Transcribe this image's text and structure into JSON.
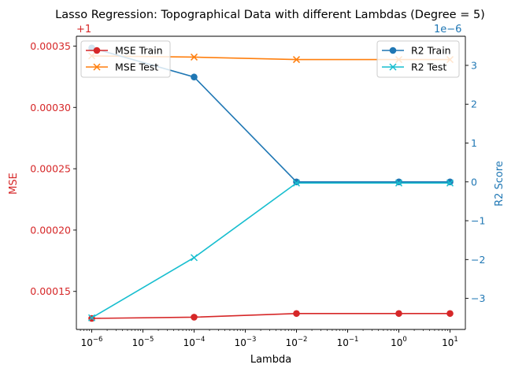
{
  "chart_data": {
    "type": "line",
    "title": "Lasso Regression: Topographical Data with different Lambdas (Degree = 5)",
    "xlabel": "Lambda",
    "x_scale": "log",
    "x": [
      1e-06,
      0.0001,
      0.01,
      1,
      10
    ],
    "x_ticks": [
      {
        "value": 1e-06,
        "base": "10",
        "exp": "−6"
      },
      {
        "value": 1e-05,
        "base": "10",
        "exp": "−5"
      },
      {
        "value": 0.0001,
        "base": "10",
        "exp": "−4"
      },
      {
        "value": 0.001,
        "base": "10",
        "exp": "−3"
      },
      {
        "value": 0.01,
        "base": "10",
        "exp": "−2"
      },
      {
        "value": 0.1,
        "base": "10",
        "exp": "−1"
      },
      {
        "value": 1,
        "base": "10",
        "exp": "0"
      },
      {
        "value": 10,
        "base": "10",
        "exp": "1"
      }
    ],
    "left_axis": {
      "label": "MSE",
      "offset_text": "+1",
      "color": "#d62728",
      "ylim": [
        0.000119,
        0.000358
      ],
      "ticks": [
        0.00015,
        0.0002,
        0.00025,
        0.0003,
        0.00035
      ],
      "tick_labels": [
        "0.00015",
        "0.00020",
        "0.00025",
        "0.00030",
        "0.00035"
      ]
    },
    "right_axis": {
      "label": "R2 Score",
      "offset_text": "1e−6",
      "color": "#1f77b4",
      "ylim": [
        -3.8,
        3.75
      ],
      "ticks": [
        -3,
        -2,
        -1,
        0,
        1,
        2,
        3
      ],
      "tick_labels": [
        "−3",
        "−2",
        "−1",
        "0",
        "1",
        "2",
        "3"
      ]
    },
    "series": [
      {
        "name": "MSE Train",
        "axis": "left",
        "color": "#d62728",
        "marker": "circle",
        "values": [
          0.000128,
          0.000129,
          0.000132,
          0.000132,
          0.000132
        ]
      },
      {
        "name": "MSE Test",
        "axis": "left",
        "color": "#ff7f0e",
        "marker": "x",
        "values": [
          0.000342,
          0.000341,
          0.000339,
          0.000339,
          0.000339
        ]
      },
      {
        "name": "R2 Train",
        "axis": "right",
        "color": "#1f77b4",
        "marker": "circle",
        "values": [
          3.45,
          2.7,
          0.0,
          0.0,
          0.0
        ]
      },
      {
        "name": "R2 Test",
        "axis": "right",
        "color": "#17becf",
        "marker": "x",
        "values": [
          -3.5,
          -1.95,
          -0.03,
          -0.03,
          -0.03
        ]
      }
    ],
    "legends": [
      {
        "position": "upper-left",
        "entries": [
          "MSE Train",
          "MSE Test"
        ]
      },
      {
        "position": "upper-right",
        "entries": [
          "R2 Train",
          "R2 Test"
        ]
      }
    ],
    "grid": false
  }
}
